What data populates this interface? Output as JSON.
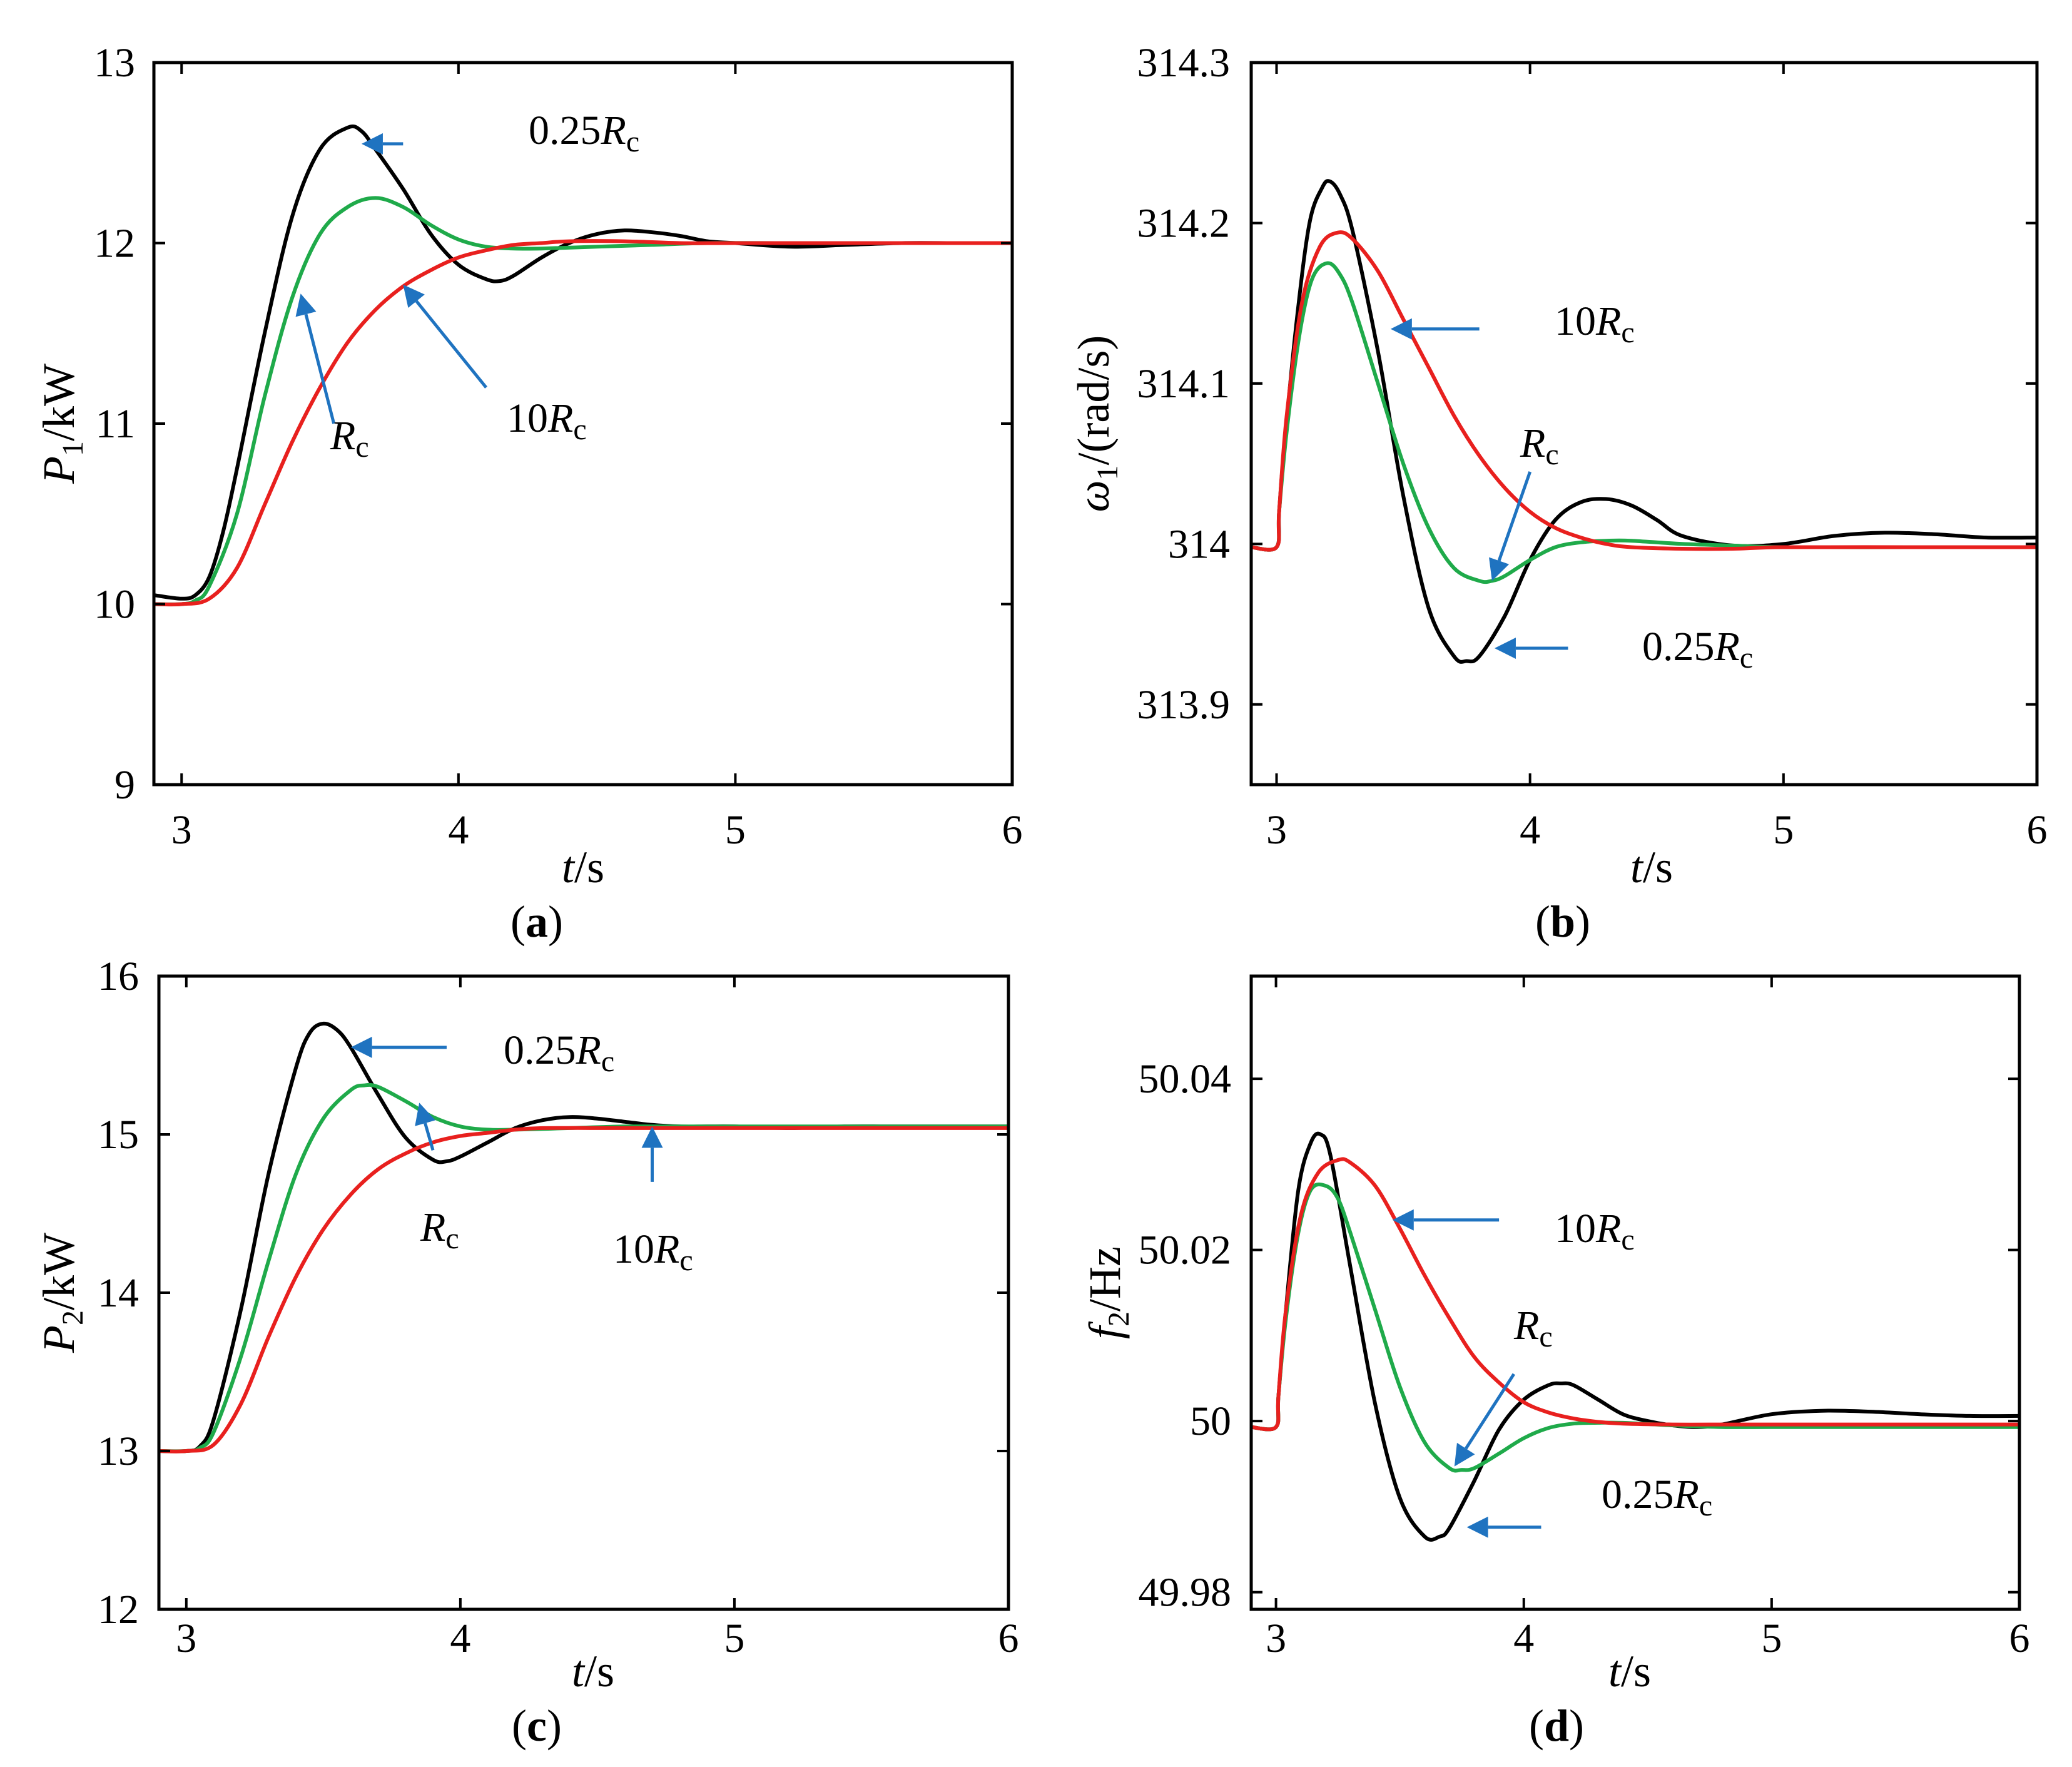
{
  "chart_data": [
    {
      "type": "line",
      "panel_label": "a",
      "xlabel_var": "t",
      "xlabel_unit": "/s",
      "ylabel_var": "P",
      "ylabel_sub": "1",
      "ylabel_unit": "/kW",
      "xlim": [
        2.9,
        6
      ],
      "ylim": [
        9,
        13
      ],
      "xticks": [
        "3",
        "4",
        "5",
        "6"
      ],
      "yticks": [
        "9",
        "10",
        "11",
        "12",
        "13"
      ],
      "series": [
        {
          "name": "0.25Rc",
          "color": "#000000",
          "x": [
            2.9,
            3.0,
            3.05,
            3.1,
            3.15,
            3.2,
            3.3,
            3.4,
            3.5,
            3.6,
            3.65,
            3.7,
            3.8,
            3.9,
            4.0,
            4.1,
            4.15,
            4.2,
            4.3,
            4.4,
            4.5,
            4.6,
            4.7,
            4.8,
            4.9,
            5.0,
            5.2,
            5.4,
            5.6,
            5.8,
            6.0
          ],
          "y": [
            10.05,
            10.03,
            10.05,
            10.15,
            10.4,
            10.75,
            11.5,
            12.15,
            12.52,
            12.64,
            12.62,
            12.52,
            12.3,
            12.05,
            11.88,
            11.8,
            11.79,
            11.82,
            11.92,
            12.0,
            12.05,
            12.07,
            12.06,
            12.04,
            12.01,
            12.0,
            11.98,
            11.99,
            12.0,
            12.0,
            12.0
          ]
        },
        {
          "name": "Rc",
          "color": "#1faa4a",
          "x": [
            2.9,
            3.0,
            3.05,
            3.1,
            3.2,
            3.3,
            3.4,
            3.5,
            3.6,
            3.7,
            3.8,
            3.9,
            4.0,
            4.1,
            4.2,
            4.3,
            4.5,
            4.7,
            4.9,
            5.2,
            5.5,
            6.0
          ],
          "y": [
            10.0,
            10.0,
            10.02,
            10.1,
            10.5,
            11.15,
            11.7,
            12.05,
            12.2,
            12.25,
            12.2,
            12.1,
            12.02,
            11.98,
            11.97,
            11.97,
            11.98,
            11.99,
            12.0,
            12.0,
            12.0,
            12.0
          ]
        },
        {
          "name": "10Rc",
          "color": "#e8201e",
          "x": [
            2.9,
            3.0,
            3.1,
            3.2,
            3.3,
            3.4,
            3.5,
            3.6,
            3.7,
            3.8,
            3.9,
            4.0,
            4.1,
            4.2,
            4.3,
            4.4,
            4.6,
            4.8,
            5.0,
            5.5,
            6.0
          ],
          "y": [
            10.0,
            10.0,
            10.03,
            10.2,
            10.55,
            10.9,
            11.2,
            11.45,
            11.63,
            11.76,
            11.85,
            11.92,
            11.96,
            11.99,
            12.0,
            12.01,
            12.01,
            12.0,
            12.0,
            12.0,
            12.0
          ]
        }
      ],
      "annotations": [
        {
          "coef": "0.25",
          "sym": "R",
          "sub": "c"
        },
        {
          "coef": "",
          "sym": "R",
          "sub": "c"
        },
        {
          "coef": "10",
          "sym": "R",
          "sub": "c"
        }
      ]
    },
    {
      "type": "line",
      "panel_label": "b",
      "xlabel_var": "t",
      "xlabel_unit": "/s",
      "ylabel_var": "ω",
      "ylabel_sub": "1",
      "ylabel_unit": "/(rad/s)",
      "xlim": [
        2.9,
        6
      ],
      "ylim": [
        313.85,
        314.3
      ],
      "xticks": [
        "3",
        "4",
        "5",
        "6"
      ],
      "yticks": [
        "313.9",
        "314",
        "314.1",
        "314.2",
        "314.3"
      ],
      "series": [
        {
          "name": "0.25Rc",
          "color": "#000000",
          "x": [
            2.9,
            3.0,
            3.01,
            3.03,
            3.08,
            3.13,
            3.18,
            3.21,
            3.25,
            3.3,
            3.4,
            3.5,
            3.6,
            3.7,
            3.75,
            3.8,
            3.9,
            4.0,
            4.1,
            4.2,
            4.3,
            4.4,
            4.5,
            4.6,
            4.8,
            5.0,
            5.2,
            5.4,
            5.6,
            5.8,
            6.0
          ],
          "y": [
            313.998,
            313.998,
            314.02,
            314.06,
            314.14,
            314.2,
            314.222,
            314.226,
            314.218,
            314.195,
            314.12,
            314.03,
            313.96,
            313.93,
            313.927,
            313.93,
            313.955,
            313.99,
            314.015,
            314.026,
            314.028,
            314.024,
            314.015,
            314.005,
            313.999,
            314.0,
            314.005,
            314.007,
            314.006,
            314.004,
            314.004
          ]
        },
        {
          "name": "Rc",
          "color": "#1faa4a",
          "x": [
            2.9,
            3.0,
            3.01,
            3.04,
            3.09,
            3.14,
            3.2,
            3.25,
            3.3,
            3.4,
            3.5,
            3.6,
            3.7,
            3.8,
            3.85,
            3.9,
            4.0,
            4.1,
            4.2,
            4.3,
            4.4,
            4.6,
            4.8,
            5.0,
            5.5,
            6.0
          ],
          "y": [
            313.998,
            313.998,
            314.02,
            314.07,
            314.13,
            314.165,
            314.175,
            314.168,
            314.15,
            314.1,
            314.05,
            314.01,
            313.985,
            313.977,
            313.977,
            313.98,
            313.99,
            313.998,
            314.001,
            314.002,
            314.002,
            314.0,
            313.999,
            313.998,
            313.998,
            313.998
          ]
        },
        {
          "name": "10Rc",
          "color": "#e8201e",
          "x": [
            2.9,
            3.0,
            3.01,
            3.04,
            3.1,
            3.17,
            3.24,
            3.3,
            3.4,
            3.5,
            3.6,
            3.7,
            3.8,
            3.9,
            4.0,
            4.1,
            4.2,
            4.3,
            4.4,
            4.6,
            4.8,
            5.0,
            5.5,
            6.0
          ],
          "y": [
            313.998,
            313.998,
            314.02,
            314.08,
            314.15,
            314.185,
            314.194,
            314.19,
            314.17,
            314.14,
            314.11,
            314.08,
            314.055,
            314.035,
            314.02,
            314.01,
            314.004,
            314.0,
            313.998,
            313.997,
            313.997,
            313.998,
            313.998,
            313.998
          ]
        }
      ],
      "annotations": [
        {
          "coef": "10",
          "sym": "R",
          "sub": "c"
        },
        {
          "coef": "",
          "sym": "R",
          "sub": "c"
        },
        {
          "coef": "0.25",
          "sym": "R",
          "sub": "c"
        }
      ]
    },
    {
      "type": "line",
      "panel_label": "c",
      "xlabel_var": "t",
      "xlabel_unit": "/s",
      "ylabel_var": "P",
      "ylabel_sub": "2",
      "ylabel_unit": "/kW",
      "xlim": [
        2.9,
        6
      ],
      "ylim": [
        12,
        16
      ],
      "xticks": [
        "3",
        "4",
        "5",
        "6"
      ],
      "yticks": [
        "12",
        "13",
        "14",
        "15",
        "16"
      ],
      "series": [
        {
          "name": "0.25Rc",
          "color": "#000000",
          "x": [
            2.9,
            3.0,
            3.05,
            3.1,
            3.2,
            3.3,
            3.4,
            3.45,
            3.5,
            3.55,
            3.6,
            3.7,
            3.8,
            3.9,
            3.95,
            4.0,
            4.1,
            4.2,
            4.3,
            4.4,
            4.5,
            4.6,
            4.7,
            4.8,
            4.9,
            5.0,
            5.2,
            5.4,
            5.6,
            5.8,
            6.0
          ],
          "y": [
            13.0,
            13.0,
            13.03,
            13.2,
            13.9,
            14.75,
            15.42,
            15.64,
            15.7,
            15.66,
            15.55,
            15.25,
            14.98,
            14.84,
            14.83,
            14.86,
            14.95,
            15.04,
            15.09,
            15.11,
            15.1,
            15.08,
            15.06,
            15.05,
            15.05,
            15.05,
            15.04,
            15.05,
            15.05,
            15.05,
            15.05
          ]
        },
        {
          "name": "Rc",
          "color": "#1faa4a",
          "x": [
            2.9,
            3.0,
            3.05,
            3.1,
            3.2,
            3.3,
            3.4,
            3.5,
            3.6,
            3.65,
            3.7,
            3.8,
            3.9,
            4.0,
            4.1,
            4.2,
            4.4,
            4.6,
            4.8,
            5.0,
            5.5,
            6.0
          ],
          "y": [
            13.0,
            13.0,
            13.02,
            13.12,
            13.6,
            14.2,
            14.75,
            15.1,
            15.28,
            15.31,
            15.3,
            15.21,
            15.11,
            15.05,
            15.03,
            15.03,
            15.04,
            15.05,
            15.05,
            15.05,
            15.05,
            15.05
          ]
        },
        {
          "name": "10Rc",
          "color": "#e8201e",
          "x": [
            2.9,
            3.0,
            3.1,
            3.2,
            3.3,
            3.4,
            3.5,
            3.6,
            3.7,
            3.8,
            3.9,
            4.0,
            4.1,
            4.2,
            4.3,
            4.5,
            4.7,
            5.0,
            5.5,
            6.0
          ],
          "y": [
            13.0,
            13.0,
            13.04,
            13.3,
            13.72,
            14.1,
            14.4,
            14.62,
            14.78,
            14.88,
            14.95,
            14.99,
            15.01,
            15.03,
            15.04,
            15.04,
            15.04,
            15.04,
            15.04,
            15.04
          ]
        }
      ],
      "annotations": [
        {
          "coef": "0.25",
          "sym": "R",
          "sub": "c"
        },
        {
          "coef": "",
          "sym": "R",
          "sub": "c"
        },
        {
          "coef": "10",
          "sym": "R",
          "sub": "c"
        }
      ]
    },
    {
      "type": "line",
      "panel_label": "d",
      "xlabel_var": "t",
      "xlabel_unit": "/s",
      "ylabel_var": "f",
      "ylabel_sub": "2",
      "ylabel_unit": "/Hz",
      "xlim": [
        2.9,
        6
      ],
      "ylim": [
        49.978,
        50.052
      ],
      "xticks": [
        "3",
        "4",
        "5",
        "6"
      ],
      "yticks": [
        "49.98",
        "50",
        "50.02",
        "50.04"
      ],
      "series": [
        {
          "name": "0.25Rc",
          "color": "#000000",
          "x": [
            2.9,
            3.0,
            3.01,
            3.04,
            3.09,
            3.14,
            3.18,
            3.22,
            3.3,
            3.4,
            3.5,
            3.6,
            3.66,
            3.7,
            3.8,
            3.9,
            4.0,
            4.1,
            4.15,
            4.2,
            4.3,
            4.4,
            4.5,
            4.6,
            4.7,
            4.8,
            5.0,
            5.2,
            5.4,
            5.6,
            5.8,
            6.0
          ],
          "y": [
            49.9993,
            49.9993,
            50.003,
            50.013,
            50.027,
            50.0325,
            50.0335,
            50.031,
            50.018,
            50.002,
            49.991,
            49.9865,
            49.9865,
            49.9875,
            49.993,
            49.999,
            50.0025,
            50.0042,
            50.0044,
            50.0042,
            50.0025,
            50.0008,
            50.0,
            49.9995,
            49.9993,
            49.9996,
            50.0008,
            50.0012,
            50.0011,
            50.0008,
            50.0006,
            50.0006
          ]
        },
        {
          "name": "Rc",
          "color": "#1faa4a",
          "x": [
            2.9,
            3.0,
            3.01,
            3.04,
            3.09,
            3.14,
            3.2,
            3.25,
            3.3,
            3.4,
            3.5,
            3.6,
            3.7,
            3.75,
            3.8,
            3.9,
            4.0,
            4.1,
            4.2,
            4.3,
            4.4,
            4.6,
            4.8,
            5.0,
            5.5,
            6.0
          ],
          "y": [
            49.9993,
            49.9993,
            50.003,
            50.012,
            50.022,
            50.027,
            50.0275,
            50.026,
            50.022,
            50.013,
            50.004,
            49.9975,
            49.9945,
            49.9943,
            49.9945,
            49.9962,
            49.998,
            49.9992,
            49.9997,
            49.9998,
            49.9998,
            49.9995,
            49.9993,
            49.9993,
            49.9993,
            49.9993
          ]
        },
        {
          "name": "10Rc",
          "color": "#e8201e",
          "x": [
            2.9,
            3.0,
            3.01,
            3.04,
            3.1,
            3.17,
            3.25,
            3.3,
            3.4,
            3.5,
            3.6,
            3.7,
            3.8,
            3.9,
            4.0,
            4.1,
            4.2,
            4.3,
            4.4,
            4.6,
            4.8,
            5.0,
            5.5,
            6.0
          ],
          "y": [
            49.9993,
            49.9993,
            50.003,
            50.013,
            50.024,
            50.029,
            50.0305,
            50.0302,
            50.0275,
            50.0225,
            50.017,
            50.012,
            50.0075,
            50.0045,
            50.0022,
            50.001,
            50.0003,
            49.9999,
            49.9997,
            49.9996,
            49.9996,
            49.9996,
            49.9996,
            49.9996
          ]
        }
      ],
      "annotations": [
        {
          "coef": "10",
          "sym": "R",
          "sub": "c"
        },
        {
          "coef": "",
          "sym": "R",
          "sub": "c"
        },
        {
          "coef": "0.25",
          "sym": "R",
          "sub": "c"
        }
      ]
    }
  ],
  "colors": {
    "axis": "#000000",
    "arrow": "#1f73c0"
  }
}
